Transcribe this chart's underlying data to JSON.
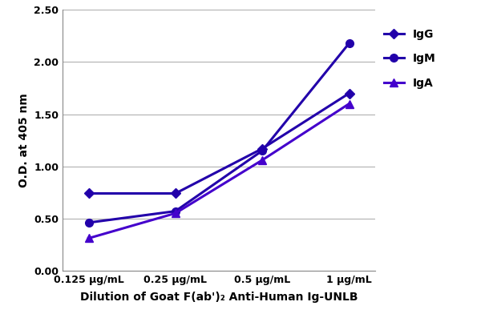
{
  "x_labels": [
    "0.125 μg/mL",
    "0.25 μg/mL",
    "0.5 μg/mL",
    "1 μg/mL"
  ],
  "x_values": [
    0.125,
    0.25,
    0.5,
    1.0
  ],
  "series": [
    {
      "name": "IgG",
      "values": [
        0.74,
        0.74,
        1.17,
        1.7
      ],
      "color": "#2200AA",
      "marker": "D",
      "marker_size": 6,
      "linewidth": 2.2
    },
    {
      "name": "IgM",
      "values": [
        0.46,
        0.57,
        1.15,
        2.18
      ],
      "color": "#2200AA",
      "marker": "o",
      "marker_size": 7,
      "linewidth": 2.2
    },
    {
      "name": "IgA",
      "values": [
        0.31,
        0.55,
        1.06,
        1.6
      ],
      "color": "#4400CC",
      "marker": "^",
      "marker_size": 7,
      "linewidth": 2.2
    }
  ],
  "ylabel": "O.D. at 405 nm",
  "xlabel": "Dilution of Goat F(ab')₂ Anti-Human Ig-UNLB",
  "ylim": [
    0.0,
    2.5
  ],
  "yticks": [
    0.0,
    0.5,
    1.0,
    1.5,
    2.0,
    2.5
  ],
  "background_color": "#ffffff",
  "grid_color": "#b0b0b0",
  "axis_label_fontsize": 10,
  "tick_fontsize": 9,
  "legend_fontsize": 10
}
